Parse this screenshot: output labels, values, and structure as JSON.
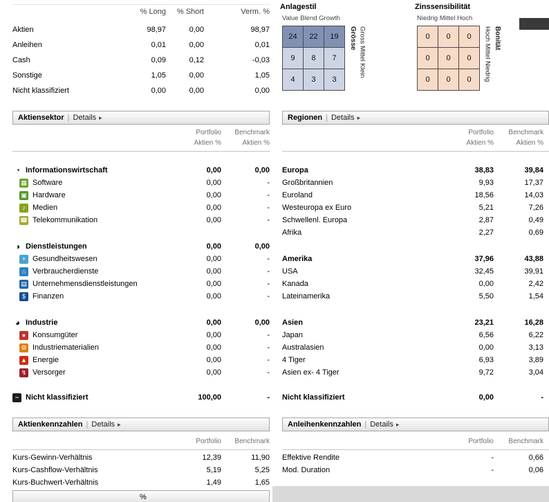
{
  "ui": {
    "sep": "|",
    "arrow": "▸"
  },
  "allocation": {
    "headers": [
      "% Long",
      "% Short",
      "Verm. %"
    ],
    "rows": [
      {
        "label": "Aktien",
        "long": "98,97",
        "short": "0,00",
        "verm": "98,97"
      },
      {
        "label": "Anleihen",
        "long": "0,01",
        "short": "0,00",
        "verm": "0,01"
      },
      {
        "label": "Cash",
        "long": "0,09",
        "short": "0,12",
        "verm": "-0,03"
      },
      {
        "label": "Sonstige",
        "long": "1,05",
        "short": "0,00",
        "verm": "1,05"
      },
      {
        "label": "Nicht klassifiziert",
        "long": "0,00",
        "short": "0,00",
        "verm": "0,00"
      }
    ]
  },
  "style_box": {
    "title": "Anlagestil",
    "top_axis": "Value Blend Growth",
    "side_label": "Grösse",
    "side_scale": "Gross Mittel Klein",
    "cells": [
      "24",
      "22",
      "19",
      "9",
      "8",
      "7",
      "4",
      "3",
      "3"
    ],
    "row1_color": "#8091b4",
    "rest_color": "#cdd5e4"
  },
  "bond_box": {
    "title": "Zinssensibilität",
    "top_axis": "Niedrig Mittel Hoch",
    "side_scale": "Hoch Mittel Niedrig",
    "side_label": "Bonität",
    "cells": [
      "0",
      "0",
      "0",
      "0",
      "0",
      "0",
      "0",
      "0",
      "0"
    ],
    "cell_color": "#f8dbc6"
  },
  "sector_section": {
    "title": "Aktiensektor",
    "details": "Details",
    "ch_p1": "Portfolio",
    "ch_p2": "Aktien %",
    "ch_b1": "Benchmark",
    "ch_b2": "Aktien %",
    "rows": [
      {
        "bold": true,
        "icon": {
          "n": "information-sector-icon",
          "g": "◔",
          "fg": "#111"
        },
        "label": "Informationswirtschaft",
        "p": "0,00",
        "b": "0,00"
      },
      {
        "icon": {
          "n": "software-icon",
          "g": "▦",
          "bg": "#6da32f",
          "fg": "#fff"
        },
        "label": "Software",
        "p": "0,00",
        "b": "-"
      },
      {
        "icon": {
          "n": "hardware-icon",
          "g": "▣",
          "bg": "#4f9a23",
          "fg": "#fff"
        },
        "label": "Hardware",
        "p": "0,00",
        "b": "-"
      },
      {
        "icon": {
          "n": "media-icon",
          "g": "♪",
          "bg": "#86a31e",
          "fg": "#fff"
        },
        "label": "Medien",
        "p": "0,00",
        "b": "-"
      },
      {
        "icon": {
          "n": "telecom-icon",
          "g": "☎",
          "bg": "#a3ab2e",
          "fg": "#fff"
        },
        "label": "Telekommunikation",
        "p": "0,00",
        "b": "-"
      },
      {
        "sp": 20
      },
      {
        "bold": true,
        "icon": {
          "n": "services-sector-icon",
          "g": "◑",
          "fg": "#111"
        },
        "label": "Dienstleistungen",
        "p": "0,00",
        "b": "0,00"
      },
      {
        "icon": {
          "n": "healthcare-icon",
          "g": "+",
          "bg": "#45a4cf",
          "fg": "#fff"
        },
        "label": "Gesundheitswesen",
        "p": "0,00",
        "b": "-"
      },
      {
        "icon": {
          "n": "consumer-services-icon",
          "g": "⌂",
          "bg": "#2e7fc2",
          "fg": "#fff"
        },
        "label": "Verbraucherdienste",
        "p": "0,00",
        "b": "-"
      },
      {
        "icon": {
          "n": "business-services-icon",
          "g": "▤",
          "bg": "#2064ab",
          "fg": "#fff"
        },
        "label": "Unternehmensdienstleistungen",
        "p": "0,00",
        "b": "-"
      },
      {
        "icon": {
          "n": "financial-services-icon",
          "g": "$",
          "bg": "#124f90",
          "fg": "#fff"
        },
        "label": "Finanzen",
        "p": "0,00",
        "b": "-"
      },
      {
        "sp": 20
      },
      {
        "bold": true,
        "icon": {
          "n": "manufacturing-sector-icon",
          "g": "◕",
          "fg": "#111"
        },
        "label": "Industrie",
        "p": "0,00",
        "b": "0,00"
      },
      {
        "icon": {
          "n": "consumer-goods-icon",
          "g": "●",
          "bg": "#c2332b",
          "fg": "#fff"
        },
        "label": "Konsumgüter",
        "p": "0,00",
        "b": "-"
      },
      {
        "icon": {
          "n": "industrial-materials-icon",
          "g": "⚙",
          "bg": "#e0810f",
          "fg": "#fff"
        },
        "label": "Industriematerialien",
        "p": "0,00",
        "b": "-"
      },
      {
        "icon": {
          "n": "energy-icon",
          "g": "▲",
          "bg": "#cf2a18",
          "fg": "#fff"
        },
        "label": "Energie",
        "p": "0,00",
        "b": "-"
      },
      {
        "icon": {
          "n": "utilities-icon",
          "g": "↯",
          "bg": "#9c1f2e",
          "fg": "#fff"
        },
        "label": "Versorger",
        "p": "0,00",
        "b": "-"
      },
      {
        "sp": 18
      },
      {
        "bold": true,
        "icon": {
          "n": "not-classified-icon",
          "g": "−",
          "bg": "#1c1c1c",
          "fg": "#fff"
        },
        "label": "Nicht klassifiziert",
        "p": "100,00",
        "b": "-"
      }
    ]
  },
  "region_section": {
    "title": "Regionen",
    "details": "Details",
    "ch_p1": "Portfolio",
    "ch_p2": "Aktien %",
    "ch_b1": "Benchmark",
    "ch_b2": "Aktien %",
    "rows": [
      {
        "bold": true,
        "label": "Europa",
        "p": "38,83",
        "b": "39,84"
      },
      {
        "label": "Großbritannien",
        "p": "9,93",
        "b": "17,37"
      },
      {
        "label": "Euroland",
        "p": "18,56",
        "b": "14,03"
      },
      {
        "label": "Westeuropa ex Euro",
        "p": "5,21",
        "b": "7,26"
      },
      {
        "label": "Schwellenl. Europa",
        "p": "2,87",
        "b": "0,49"
      },
      {
        "label": "Afrika",
        "p": "2,27",
        "b": "0,69"
      },
      {
        "sp": 20
      },
      {
        "bold": true,
        "label": "Amerika",
        "p": "37,96",
        "b": "43,88"
      },
      {
        "label": "USA",
        "p": "32,45",
        "b": "39,91"
      },
      {
        "label": "Kanada",
        "p": "0,00",
        "b": "2,42"
      },
      {
        "label": "Lateinamerika",
        "p": "5,50",
        "b": "1,54"
      },
      {
        "sp": 20
      },
      {
        "bold": true,
        "label": "Asien",
        "p": "23,21",
        "b": "16,28"
      },
      {
        "label": "Japan",
        "p": "6,56",
        "b": "6,22"
      },
      {
        "label": "Australasien",
        "p": "0,00",
        "b": "3,13"
      },
      {
        "label": "4 Tiger",
        "p": "6,93",
        "b": "3,89"
      },
      {
        "label": "Asien ex- 4 Tiger",
        "p": "9,72",
        "b": "3,04"
      },
      {
        "sp": 18
      },
      {
        "bold": true,
        "label": "Nicht klassifiziert",
        "p": "0,00",
        "b": "-"
      }
    ]
  },
  "equity_stats_section": {
    "title": "Aktienkennzahlen",
    "details": "Details",
    "ch_p": "Portfolio",
    "ch_b": "Benchmark",
    "rows": [
      {
        "label": "Kurs-Gewinn-Verhältnis",
        "p": "12,39",
        "b": "11,90"
      },
      {
        "label": "Kurs-Cashflow-Verhältnis",
        "p": "5,19",
        "b": "5,25"
      },
      {
        "label": "Kurs-Buchwert-Verhältnis",
        "p": "1,49",
        "b": "1,65"
      }
    ]
  },
  "bond_stats_section": {
    "title": "Anleihenkennzahlen",
    "details": "Details",
    "ch_p": "Portfolio",
    "ch_b": "Benchmark",
    "rows": [
      {
        "label": "Effektive Rendite",
        "p": "-",
        "b": "0,66"
      },
      {
        "label": "Mod. Duration",
        "p": "-",
        "b": "0,06"
      }
    ]
  },
  "partial_bar": {
    "text": "%"
  }
}
